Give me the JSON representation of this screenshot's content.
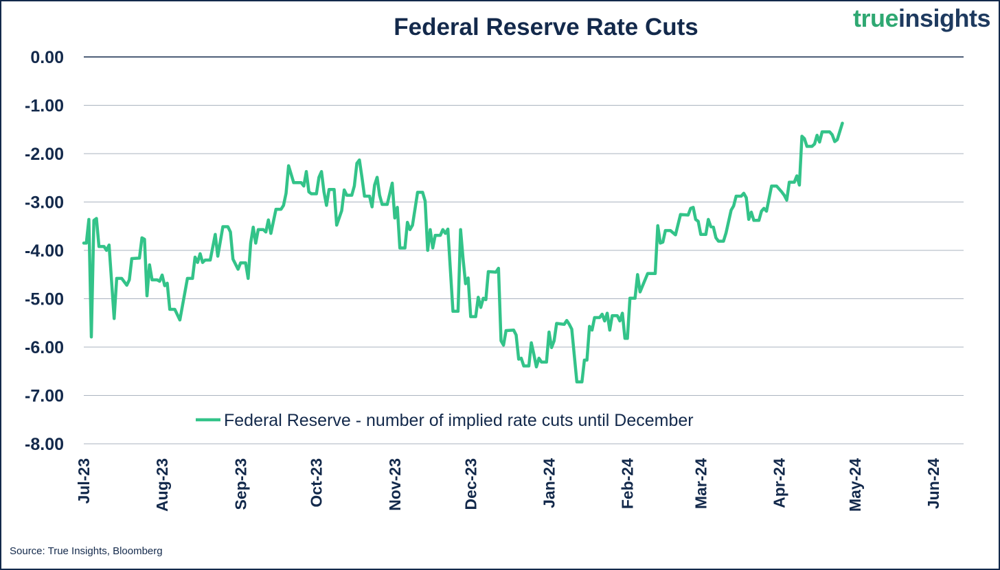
{
  "chart_data": {
    "type": "line",
    "title": "Federal Reserve Rate Cuts",
    "xlabel": "",
    "ylabel": "",
    "x_unit": "days since 2023-07-01",
    "xlim": [
      0,
      336
    ],
    "ylim": [
      -8,
      0
    ],
    "yticks": [
      {
        "value": 0,
        "label": "0.00"
      },
      {
        "value": -1,
        "label": "-1.00"
      },
      {
        "value": -2,
        "label": "-2.00"
      },
      {
        "value": -3,
        "label": "-3.00"
      },
      {
        "value": -4,
        "label": "-4.00"
      },
      {
        "value": -5,
        "label": "-5.00"
      },
      {
        "value": -6,
        "label": "-6.00"
      },
      {
        "value": -7,
        "label": "-7.00"
      },
      {
        "value": -8,
        "label": "-8.00"
      }
    ],
    "xticks": [
      {
        "value": 0,
        "label": "Jul-23"
      },
      {
        "value": 31,
        "label": "Aug-23"
      },
      {
        "value": 62,
        "label": "Sep-23"
      },
      {
        "value": 92,
        "label": "Oct-23"
      },
      {
        "value": 123,
        "label": "Nov-23"
      },
      {
        "value": 153,
        "label": "Dec-23"
      },
      {
        "value": 184,
        "label": "Jan-24"
      },
      {
        "value": 215,
        "label": "Feb-24"
      },
      {
        "value": 244,
        "label": "Mar-24"
      },
      {
        "value": 275,
        "label": "Apr-24"
      },
      {
        "value": 305,
        "label": "May-24"
      },
      {
        "value": 336,
        "label": "Jun-24"
      }
    ],
    "grid": true,
    "legend_position": "bottom-center-inside",
    "series": [
      {
        "name": "Federal Reserve - number of implied rate cuts until December",
        "color": "#33c389",
        "x": [
          0,
          1,
          2,
          3,
          4,
          5,
          6,
          8,
          9,
          10,
          12,
          13,
          15,
          17,
          18,
          19,
          22,
          23,
          24,
          25,
          26,
          27,
          29,
          30,
          31,
          32,
          33,
          34,
          36,
          38,
          41,
          43,
          44,
          45,
          46,
          47,
          48,
          50,
          52,
          53,
          55,
          57,
          58,
          59,
          61,
          62,
          64,
          65,
          66,
          67,
          68,
          69,
          71,
          72,
          73,
          74,
          76,
          78,
          79,
          80,
          81,
          83,
          86,
          87,
          88,
          89,
          90,
          92,
          93,
          94,
          95,
          96,
          97,
          99,
          100,
          102,
          103,
          104,
          106,
          107,
          108,
          109,
          110,
          111,
          113,
          114,
          115,
          116,
          117,
          118,
          120,
          122,
          123,
          124,
          125,
          127,
          128,
          129,
          130,
          132,
          134,
          135,
          136,
          137,
          138,
          139,
          141,
          142,
          143,
          144,
          146,
          148,
          149,
          150,
          151,
          152,
          153,
          155,
          156,
          157,
          158,
          159,
          160,
          163,
          164,
          165,
          166,
          167,
          170,
          171,
          172,
          173,
          174,
          176,
          177,
          178,
          179,
          180,
          181,
          183,
          184,
          185,
          186,
          187,
          190,
          191,
          192,
          193,
          195,
          197,
          198,
          199,
          200,
          201,
          202,
          204,
          205,
          206,
          207,
          208,
          209,
          211,
          212,
          213,
          214,
          215,
          216,
          218,
          219,
          220,
          223,
          226,
          227,
          228,
          229,
          230,
          232,
          234,
          236,
          239,
          240,
          241,
          242,
          243,
          244,
          246,
          247,
          248,
          249,
          250,
          251,
          253,
          254,
          256,
          257,
          258,
          260,
          261,
          262,
          263,
          264,
          265,
          267,
          268,
          269,
          270,
          272,
          274,
          276,
          277,
          278,
          279,
          281,
          282,
          283,
          284,
          285,
          286,
          288,
          289,
          290,
          291,
          292,
          295,
          296,
          297,
          298,
          300
        ],
        "y": [
          -3.85,
          -3.85,
          -3.36,
          -5.79,
          -3.38,
          -3.34,
          -3.92,
          -3.92,
          -4.0,
          -3.89,
          -5.41,
          -4.58,
          -4.58,
          -4.72,
          -4.61,
          -4.17,
          -4.16,
          -3.74,
          -3.77,
          -4.94,
          -4.3,
          -4.61,
          -4.61,
          -4.64,
          -4.51,
          -4.73,
          -4.68,
          -5.22,
          -5.22,
          -5.44,
          -4.58,
          -4.58,
          -4.14,
          -4.25,
          -4.07,
          -4.25,
          -4.2,
          -4.2,
          -3.67,
          -4.12,
          -3.51,
          -3.51,
          -3.62,
          -4.18,
          -4.39,
          -4.26,
          -4.26,
          -4.58,
          -3.85,
          -3.52,
          -3.85,
          -3.57,
          -3.57,
          -3.62,
          -3.37,
          -3.65,
          -3.15,
          -3.15,
          -3.07,
          -2.82,
          -2.25,
          -2.6,
          -2.6,
          -2.67,
          -2.37,
          -2.79,
          -2.83,
          -2.83,
          -2.49,
          -2.37,
          -2.79,
          -3.07,
          -2.74,
          -2.74,
          -3.48,
          -3.18,
          -2.75,
          -2.86,
          -2.86,
          -2.67,
          -2.2,
          -2.13,
          -2.49,
          -2.88,
          -2.88,
          -3.1,
          -2.65,
          -2.49,
          -2.86,
          -3.05,
          -3.05,
          -2.61,
          -3.33,
          -3.11,
          -3.95,
          -3.95,
          -3.42,
          -3.57,
          -3.48,
          -2.8,
          -2.8,
          -2.98,
          -4.0,
          -3.57,
          -3.95,
          -3.69,
          -3.69,
          -3.57,
          -3.65,
          -3.56,
          -5.26,
          -5.26,
          -3.57,
          -4.17,
          -4.69,
          -4.57,
          -5.37,
          -5.37,
          -4.97,
          -5.18,
          -4.99,
          -5.02,
          -4.44,
          -4.45,
          -4.37,
          -5.87,
          -5.96,
          -5.66,
          -5.65,
          -5.75,
          -6.25,
          -6.23,
          -6.39,
          -6.39,
          -5.91,
          -6.15,
          -6.41,
          -6.23,
          -6.31,
          -6.31,
          -5.69,
          -6.01,
          -5.87,
          -5.51,
          -5.53,
          -5.45,
          -5.53,
          -5.63,
          -6.72,
          -6.72,
          -6.27,
          -6.27,
          -5.57,
          -5.65,
          -5.39,
          -5.39,
          -5.32,
          -5.46,
          -5.3,
          -5.65,
          -5.35,
          -5.35,
          -5.46,
          -5.3,
          -5.82,
          -5.82,
          -4.99,
          -4.99,
          -4.5,
          -4.86,
          -4.48,
          -4.48,
          -3.49,
          -3.85,
          -3.83,
          -3.59,
          -3.59,
          -3.68,
          -3.26,
          -3.27,
          -3.13,
          -3.11,
          -3.36,
          -3.4,
          -3.67,
          -3.67,
          -3.36,
          -3.51,
          -3.52,
          -3.74,
          -3.81,
          -3.81,
          -3.64,
          -3.17,
          -3.08,
          -2.88,
          -2.88,
          -2.82,
          -2.91,
          -3.36,
          -3.21,
          -3.38,
          -3.38,
          -3.19,
          -3.13,
          -3.19,
          -2.67,
          -2.67,
          -2.79,
          -2.86,
          -2.96,
          -2.59,
          -2.59,
          -2.46,
          -2.65,
          -1.64,
          -1.69,
          -1.85,
          -1.85,
          -1.8,
          -1.62,
          -1.76,
          -1.55,
          -1.55,
          -1.61,
          -1.75,
          -1.71,
          -1.37
        ]
      }
    ]
  },
  "logo": {
    "part1": "true",
    "part2": "insights"
  },
  "source": "Source: True Insights, Bloomberg",
  "colors": {
    "navy": "#13294b",
    "grid": "#aab3bf",
    "line": "#33c389"
  }
}
